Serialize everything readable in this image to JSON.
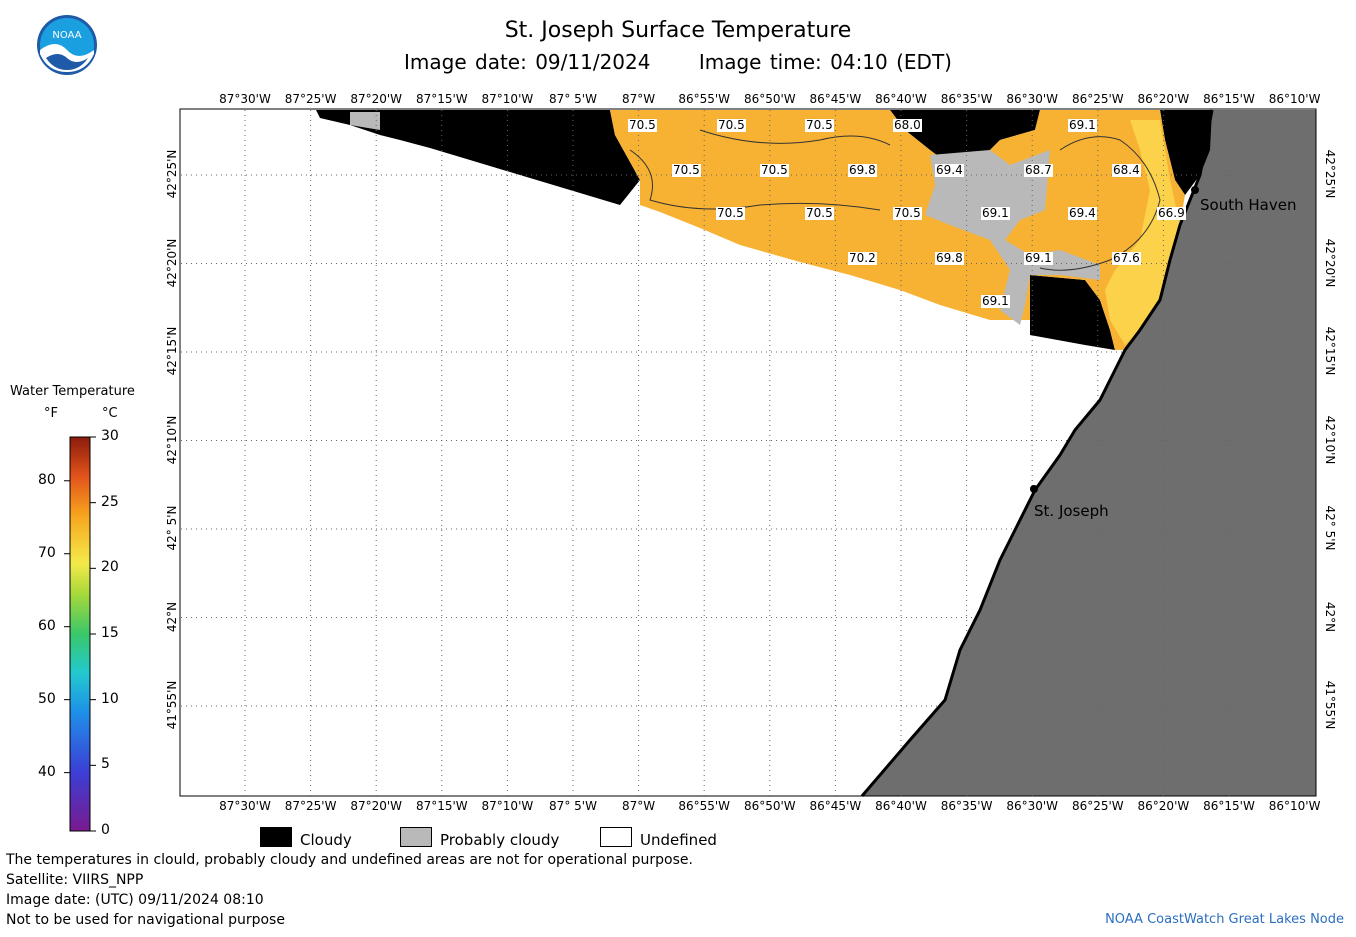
{
  "header": {
    "title": "St. Joseph Surface Temperature",
    "image_date": "Image date: 09/11/2024",
    "image_time": "Image time: 04:10 (EDT)"
  },
  "logo": {
    "text": "NOAA"
  },
  "map": {
    "lon_labels": [
      "87°30'W",
      "87°25'W",
      "87°20'W",
      "87°15'W",
      "87°10'W",
      "87° 5'W",
      "87°W",
      "86°55'W",
      "86°50'W",
      "86°45'W",
      "86°40'W",
      "86°35'W",
      "86°30'W",
      "86°25'W",
      "86°20'W",
      "86°15'W",
      "86°10'W"
    ],
    "lat_labels": [
      "42°25'N",
      "42°20'N",
      "42°15'N",
      "42°10'N",
      "42° 5'N",
      "42°N",
      "41°55'N"
    ],
    "temperature_labels": [
      "70.5",
      "70.5",
      "70.5",
      "68.0",
      "69.1",
      "70.5",
      "70.5",
      "69.8",
      "69.4",
      "68.7",
      "68.4",
      "70.5",
      "70.5",
      "70.5",
      "69.1",
      "69.4",
      "66.9",
      "70.2",
      "69.8",
      "69.1",
      "67.6",
      "69.1"
    ],
    "cities": [
      "South Haven",
      "St. Joseph"
    ],
    "colors": {
      "land": "#6e6e6e",
      "cloudy": "#000000",
      "probably_cloudy": "#b9b9b9",
      "water_warm": "#f7b233",
      "water_cool": "#fbd24a",
      "undefined": "#ffffff"
    }
  },
  "legend": {
    "title": "Water Temperature",
    "unit_f": "°F",
    "unit_c": "°C",
    "f_ticks": [
      "80",
      "70",
      "60",
      "50",
      "40"
    ],
    "c_ticks": [
      "30",
      "25",
      "20",
      "15",
      "10",
      "5",
      "0"
    ]
  },
  "key": {
    "cloudy": "Cloudy",
    "probably_cloudy": "Probably cloudy",
    "undefined": "Undefined"
  },
  "footer": {
    "note": "The temperatures in clould, probably cloudy and undefined areas are not for operational purpose.",
    "satellite": "Satellite: VIIRS_NPP",
    "utc_date": "Image date: (UTC) 09/11/2024  08:10",
    "navigation": "Not to be used for navigational purpose",
    "credit": "NOAA CoastWatch Great Lakes Node"
  }
}
